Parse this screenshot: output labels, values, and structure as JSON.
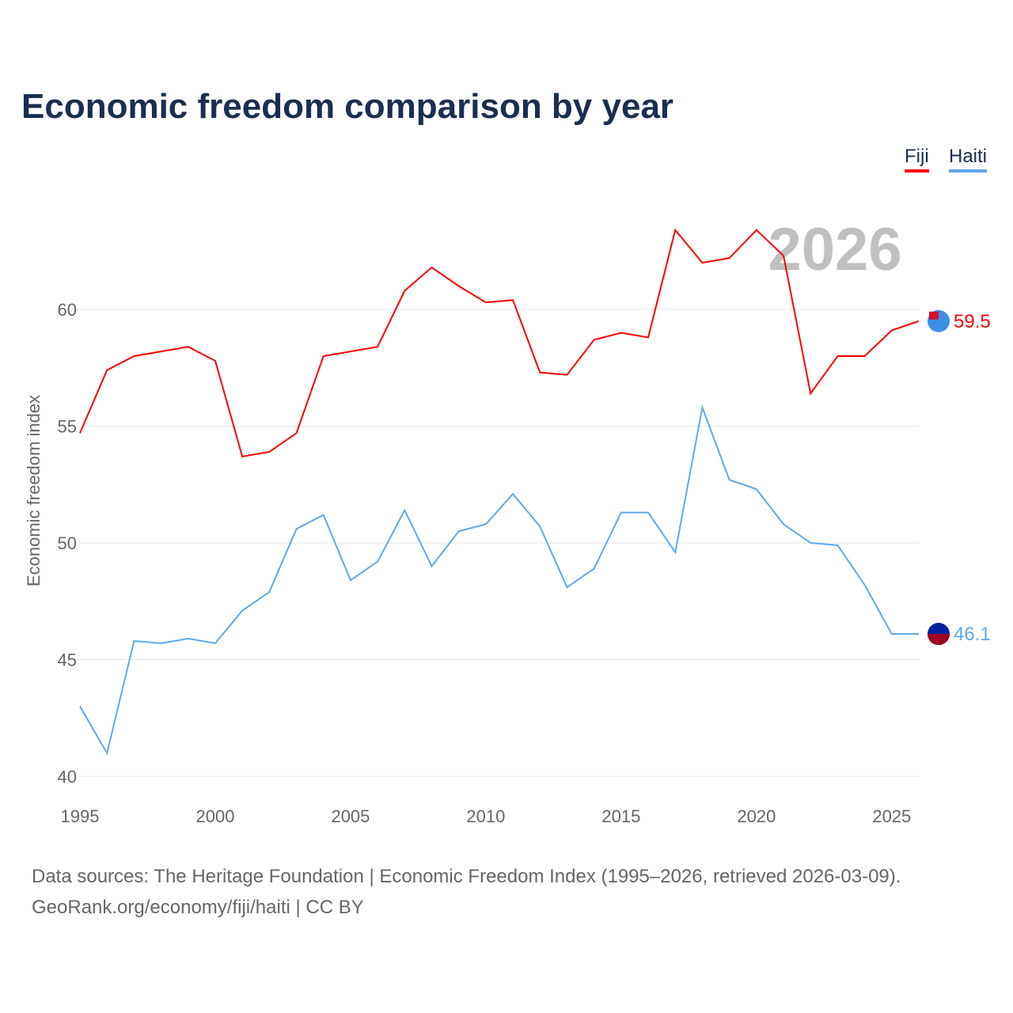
{
  "chart_data": {
    "type": "line",
    "title": "Economic freedom comparison by year",
    "xlabel": "",
    "ylabel": "Economic freedom index",
    "xlim": [
      1995,
      2026
    ],
    "ylim": [
      40,
      65
    ],
    "yticks": [
      40,
      45,
      50,
      55,
      60
    ],
    "xticks": [
      1995,
      2000,
      2005,
      2010,
      2015,
      2020,
      2025
    ],
    "grid": true,
    "legend_position": "top-right",
    "year_watermark": "2026",
    "x": [
      1995,
      1996,
      1997,
      1998,
      1999,
      2000,
      2001,
      2002,
      2003,
      2004,
      2005,
      2006,
      2007,
      2008,
      2009,
      2010,
      2011,
      2012,
      2013,
      2014,
      2015,
      2016,
      2017,
      2018,
      2019,
      2020,
      2021,
      2022,
      2023,
      2024,
      2025,
      2026
    ],
    "series": [
      {
        "name": "Fiji",
        "color": "#ff0000",
        "end_label": "59.5",
        "values": [
          54.7,
          57.4,
          58.0,
          58.2,
          58.4,
          57.8,
          53.7,
          53.9,
          54.7,
          58.0,
          58.2,
          58.4,
          60.8,
          61.8,
          61.0,
          60.3,
          60.4,
          57.3,
          57.2,
          58.7,
          59.0,
          58.8,
          63.4,
          62.0,
          62.2,
          63.4,
          62.3,
          56.4,
          58.0,
          58.0,
          59.1,
          59.5
        ]
      },
      {
        "name": "Haiti",
        "color": "#5fa8ec",
        "end_label": "46.1",
        "values": [
          43.0,
          41.0,
          45.8,
          45.7,
          45.9,
          45.7,
          47.1,
          47.9,
          50.6,
          51.2,
          48.4,
          49.2,
          51.4,
          49.0,
          50.5,
          50.8,
          52.1,
          50.7,
          48.1,
          48.9,
          51.3,
          51.3,
          49.6,
          55.8,
          52.7,
          52.3,
          50.8,
          50.0,
          49.9,
          48.2,
          46.1,
          46.1
        ]
      }
    ]
  },
  "footer": {
    "line1": "Data sources: The Heritage Foundation | Economic Freedom Index (1995–2026, retrieved 2026-03-09).",
    "line2": "GeoRank.org/economy/fiji/haiti | CC BY"
  }
}
